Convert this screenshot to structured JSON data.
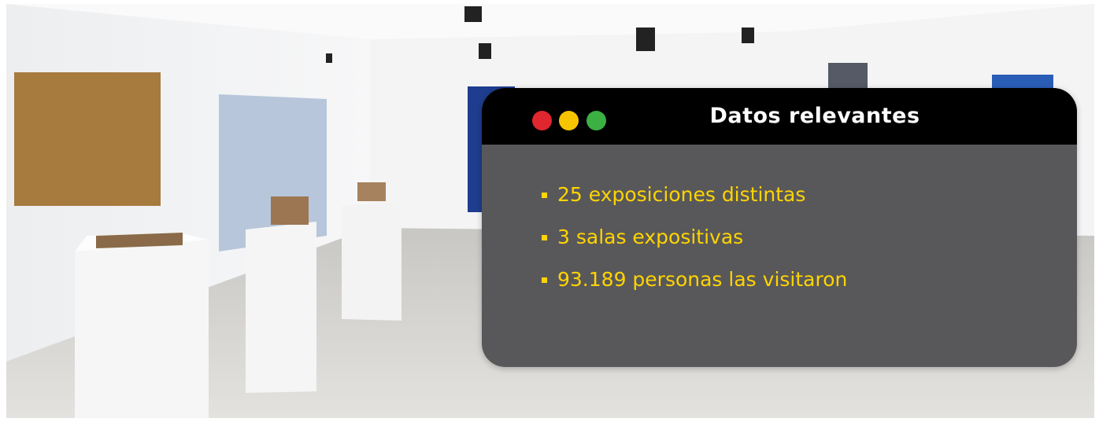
{
  "card": {
    "title": "Datos relevantes",
    "items": [
      "25 exposiciones distintas",
      "3 salas expositivas",
      "93.189 personas las visitaron"
    ]
  }
}
